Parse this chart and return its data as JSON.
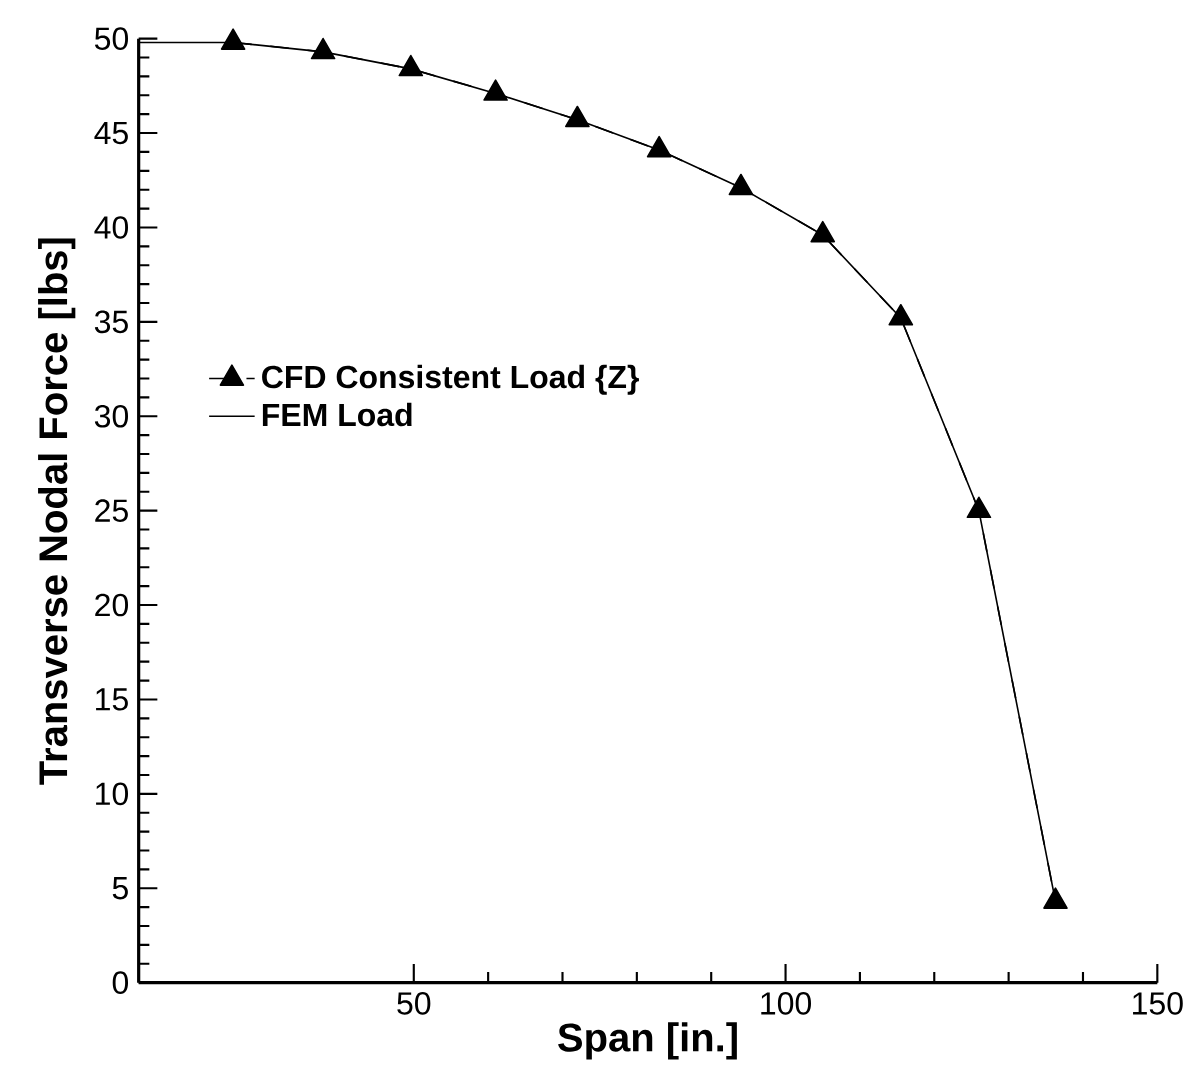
{
  "chart_data": {
    "type": "line",
    "xlabel": "Span [in.]",
    "ylabel": "Transverse Nodal Force [lbs]",
    "xlim": [
      13,
      150
    ],
    "xticks": [
      50,
      100,
      150
    ],
    "ylim": [
      0,
      50
    ],
    "yticks": [
      0,
      5,
      10,
      15,
      20,
      25,
      30,
      35,
      40,
      45,
      50
    ],
    "legend": "left",
    "grid": false,
    "series": [
      {
        "name": "CFD Consistent Load {Z}",
        "color": "#000000",
        "marker": "triangle",
        "line_style": "dashed",
        "x": [
          25.7,
          37.8,
          49.6,
          61,
          72,
          83,
          94,
          105,
          115.5,
          126,
          136.3
        ],
        "values": [
          49.8,
          49.3,
          48.4,
          47.1,
          45.7,
          44.1,
          42.1,
          39.6,
          35.2,
          25.0,
          4.3
        ]
      },
      {
        "name": "FEM Load",
        "color": "#000000",
        "marker": "none",
        "line_style": "solid",
        "x": [
          13,
          25.7,
          37.8,
          49.6,
          61,
          72,
          83,
          94,
          105,
          115.5,
          126,
          136.3
        ],
        "values": [
          49.8,
          49.8,
          49.3,
          48.4,
          47.1,
          45.7,
          44.1,
          42.1,
          39.6,
          35.2,
          25.0,
          4.3
        ]
      }
    ]
  }
}
